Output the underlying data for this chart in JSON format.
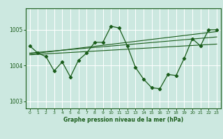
{
  "title": "Graphe pression niveau de la mer (hPa)",
  "background_color": "#cce8e0",
  "grid_color": "#ffffff",
  "line_color": "#1a5c1a",
  "ylim": [
    1002.8,
    1005.6
  ],
  "xlim": [
    -0.5,
    23.5
  ],
  "yticks": [
    1003,
    1004,
    1005
  ],
  "xticks": [
    0,
    1,
    2,
    3,
    4,
    5,
    6,
    7,
    8,
    9,
    10,
    11,
    12,
    13,
    14,
    15,
    16,
    17,
    18,
    19,
    20,
    21,
    22,
    23
  ],
  "main_series": [
    [
      0,
      1004.55
    ],
    [
      1,
      1004.35
    ],
    [
      2,
      1004.25
    ],
    [
      3,
      1003.85
    ],
    [
      4,
      1004.1
    ],
    [
      5,
      1003.68
    ],
    [
      6,
      1004.15
    ],
    [
      7,
      1004.35
    ],
    [
      8,
      1004.65
    ],
    [
      9,
      1004.65
    ],
    [
      10,
      1005.1
    ],
    [
      11,
      1005.05
    ],
    [
      12,
      1004.55
    ],
    [
      13,
      1003.95
    ],
    [
      14,
      1003.62
    ],
    [
      15,
      1003.38
    ],
    [
      16,
      1003.35
    ],
    [
      17,
      1003.75
    ],
    [
      18,
      1003.72
    ],
    [
      19,
      1004.2
    ],
    [
      20,
      1004.75
    ],
    [
      21,
      1004.55
    ],
    [
      22,
      1005.0
    ],
    [
      23,
      1005.0
    ]
  ],
  "trend_line1": [
    [
      0,
      1004.35
    ],
    [
      23,
      1004.8
    ]
  ],
  "trend_line2": [
    [
      0,
      1004.3
    ],
    [
      23,
      1004.6
    ]
  ],
  "trend_line3": [
    [
      0,
      1004.32
    ],
    [
      23,
      1004.95
    ]
  ]
}
